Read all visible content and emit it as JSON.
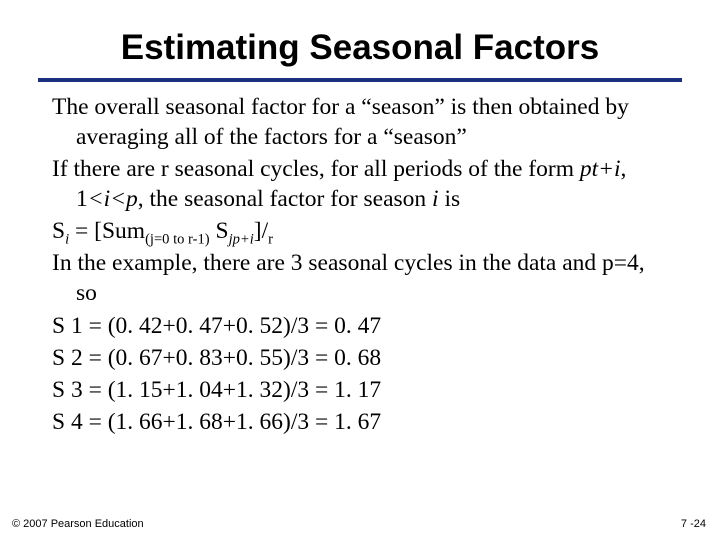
{
  "title": "Estimating Seasonal Factors",
  "rule_color": "#1d2f7f",
  "body": {
    "p1": "The overall seasonal factor for a “season” is then obtained by averaging all of the factors for a “season”",
    "p2a": "If there are r seasonal cycles, for all periods of the form ",
    "p2_term1": "pt+i",
    "p2b": ", 1",
    "p2_le1": "<",
    "p2_i1": "i",
    "p2_le2": "<",
    "p2_p": "p",
    "p2c": ", the seasonal factor for season ",
    "p2_i2": "i",
    "p2d": " is",
    "p3_lhs": "S",
    "p3_sub_i": "i",
    "p3_mid1": " = [Sum",
    "p3_sum_sub": "(j=0 to r-1)",
    "p3_mid2": " S",
    "p3_S_sub": "jp+i",
    "p3_mid3": "]/",
    "p3_r": "r",
    "p4": "In the example, there are 3 seasonal cycles in the data and p=4, so",
    "s1": "S 1 = (0. 42+0. 47+0. 52)/3 = 0. 47",
    "s2": "S 2 = (0. 67+0. 83+0. 55)/3 = 0. 68",
    "s3": "S 3 = (1. 15+1. 04+1. 32)/3 = 1. 17",
    "s4": "S 4 = (1. 66+1. 68+1. 66)/3 = 1. 67"
  },
  "copyright": "© 2007 Pearson Education",
  "pagenum": "7 -24",
  "style": {
    "title_fontsize": 35,
    "body_fontsize": 23.5,
    "footer_fontsize": 11
  }
}
